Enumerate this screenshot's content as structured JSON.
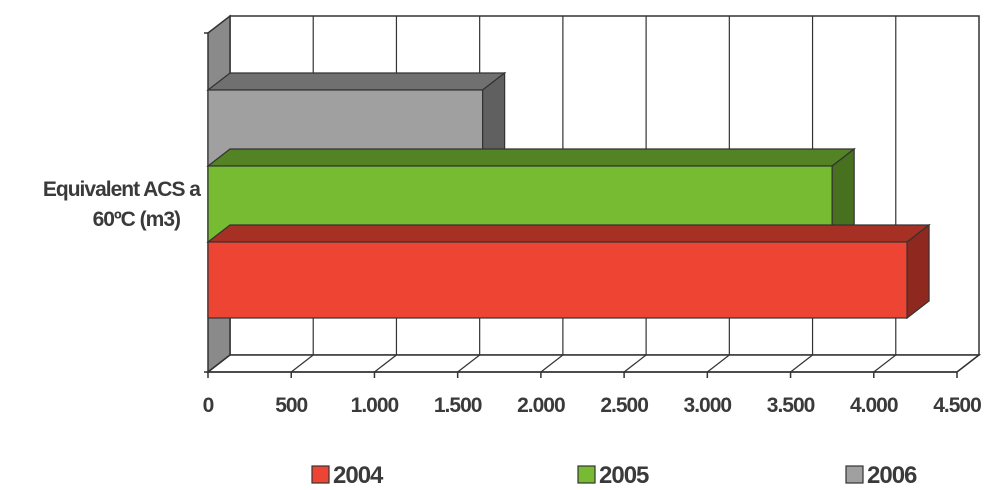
{
  "chart_data": {
    "type": "bar",
    "orientation": "horizontal",
    "three_d": true,
    "categories": [
      "Equivalent ACS a 60ºC (m3)"
    ],
    "category_label_lines": [
      "Equivalent ACS a",
      "60ºC (m3)"
    ],
    "series": [
      {
        "name": "2004",
        "values": [
          4200
        ],
        "color": "#ee4433"
      },
      {
        "name": "2005",
        "values": [
          3750
        ],
        "color": "#77bb33"
      },
      {
        "name": "2006",
        "values": [
          1650
        ],
        "color": "#a0a0a0"
      }
    ],
    "xlim": [
      0,
      4500
    ],
    "xticks": [
      0,
      500,
      1000,
      1500,
      2000,
      2500,
      3000,
      3500,
      4000,
      4500
    ],
    "xtick_labels": [
      "0",
      "500",
      "1.000",
      "1.500",
      "2.000",
      "2.500",
      "3.000",
      "3.500",
      "4.000",
      "4.500"
    ],
    "grid": true,
    "legend_position": "bottom"
  }
}
